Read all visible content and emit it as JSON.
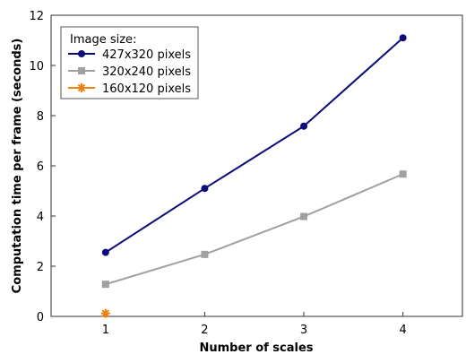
{
  "chart_data": {
    "type": "line",
    "title": "",
    "xlabel": "Number of scales",
    "ylabel": "Computation time per frame (seconds)",
    "xlim": [
      0.45,
      4.6
    ],
    "ylim": [
      0,
      12
    ],
    "xticks": [
      1,
      2,
      3,
      4
    ],
    "yticks": [
      0,
      2,
      4,
      6,
      8,
      10,
      12
    ],
    "grid": false,
    "legend": {
      "title": "Image size:",
      "position": "top-left"
    },
    "series": [
      {
        "name": "427x320 pixels",
        "color": "#0a0a7a",
        "marker": "circle",
        "x": [
          1,
          2,
          3,
          4
        ],
        "y": [
          2.55,
          5.1,
          7.58,
          11.1
        ]
      },
      {
        "name": "320x240 pixels",
        "color": "#a0a0a0",
        "marker": "square",
        "x": [
          1,
          2,
          3,
          4
        ],
        "y": [
          1.28,
          2.47,
          3.98,
          5.67
        ]
      },
      {
        "name": "160x120 pixels",
        "color": "#f08010",
        "marker": "star",
        "x": [
          1
        ],
        "y": [
          0.12
        ]
      }
    ]
  }
}
